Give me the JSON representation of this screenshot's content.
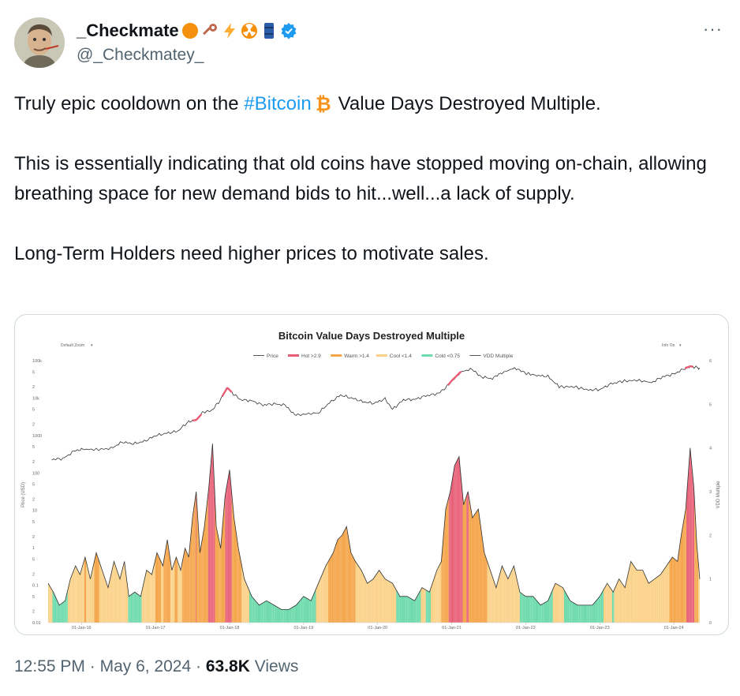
{
  "author": {
    "display_name": "_Checkmate",
    "handle": "@_Checkmatey_",
    "badges": [
      "orange-circle-icon",
      "key-icon",
      "lightning-icon",
      "radioactive-icon",
      "barrel-icon",
      "verified-badge-icon"
    ]
  },
  "more_label": "···",
  "tweet": {
    "line1_before": "Truly epic cooldown on the ",
    "hashtag": "#Bitcoin",
    "line1_after": "Value Days Destroyed Multiple.",
    "para2": "This is essentially indicating that old coins have stopped moving on-chain, allowing breathing space for new demand bids to hit...well...a lack of supply.",
    "para3": "Long-Term Holders need higher prices to motivate sales."
  },
  "chart_data": {
    "type": "line",
    "title": "Bitcoin Value Days Destroyed Multiple",
    "controls": {
      "zoom": "Default Zoom",
      "info": "Info On"
    },
    "legend": [
      {
        "label": "Price",
        "color": "#555555"
      },
      {
        "label": "Hot >2.9",
        "color": "#e85d75"
      },
      {
        "label": "Warm >1.4",
        "color": "#f5a447"
      },
      {
        "label": "Cool <1.4",
        "color": "#fbd28a"
      },
      {
        "label": "Cold <0.75",
        "color": "#6fdbac"
      },
      {
        "label": "VDD Multiple",
        "color": "#555555"
      }
    ],
    "left_axis": {
      "label": "Price (USD)",
      "ticks": [
        "100k",
        "5",
        "2",
        "10k",
        "5",
        "2",
        "1000",
        "5",
        "2",
        "100",
        "5",
        "2",
        "10",
        "5",
        "2",
        "1",
        "5",
        "2",
        "0.1",
        "5",
        "2",
        "0.01"
      ]
    },
    "right_axis": {
      "label": "VDD Multiple",
      "ticks": [
        "6",
        "5",
        "4",
        "3",
        "2",
        "1",
        "0"
      ]
    },
    "x_ticks": [
      "01-Jan-16",
      "01-Jan-17",
      "01-Jan-18",
      "01-Jan-19",
      "01-Jan-20",
      "01-Jan-21",
      "01-Jan-22",
      "01-Jan-23",
      "01-Jan-24"
    ],
    "price_series": [
      [
        2015.6,
        230
      ],
      [
        2015.75,
        240
      ],
      [
        2015.9,
        380
      ],
      [
        2016.0,
        430
      ],
      [
        2016.2,
        420
      ],
      [
        2016.4,
        450
      ],
      [
        2016.55,
        670
      ],
      [
        2016.7,
        600
      ],
      [
        2016.85,
        700
      ],
      [
        2017.0,
        990
      ],
      [
        2017.15,
        1150
      ],
      [
        2017.3,
        1300
      ],
      [
        2017.45,
        2400
      ],
      [
        2017.55,
        2600
      ],
      [
        2017.65,
        4300
      ],
      [
        2017.75,
        4500
      ],
      [
        2017.85,
        7500
      ],
      [
        2017.97,
        19000
      ],
      [
        2018.05,
        13000
      ],
      [
        2018.15,
        9000
      ],
      [
        2018.3,
        8500
      ],
      [
        2018.45,
        6500
      ],
      [
        2018.6,
        7000
      ],
      [
        2018.75,
        6500
      ],
      [
        2018.88,
        3700
      ],
      [
        2019.0,
        3700
      ],
      [
        2019.2,
        4000
      ],
      [
        2019.35,
        7500
      ],
      [
        2019.5,
        12000
      ],
      [
        2019.65,
        10000
      ],
      [
        2019.8,
        8000
      ],
      [
        2019.95,
        7200
      ],
      [
        2020.1,
        9500
      ],
      [
        2020.2,
        5000
      ],
      [
        2020.35,
        9000
      ],
      [
        2020.5,
        9200
      ],
      [
        2020.65,
        11500
      ],
      [
        2020.8,
        13000
      ],
      [
        2020.92,
        19000
      ],
      [
        2021.0,
        29000
      ],
      [
        2021.12,
        50000
      ],
      [
        2021.28,
        60000
      ],
      [
        2021.4,
        37000
      ],
      [
        2021.55,
        33000
      ],
      [
        2021.68,
        47000
      ],
      [
        2021.85,
        64000
      ],
      [
        2021.98,
        47000
      ],
      [
        2022.15,
        40000
      ],
      [
        2022.3,
        38000
      ],
      [
        2022.45,
        20000
      ],
      [
        2022.65,
        20000
      ],
      [
        2022.85,
        16500
      ],
      [
        2023.0,
        16800
      ],
      [
        2023.15,
        24000
      ],
      [
        2023.3,
        28000
      ],
      [
        2023.5,
        30000
      ],
      [
        2023.7,
        26000
      ],
      [
        2023.85,
        37000
      ],
      [
        2024.0,
        44000
      ],
      [
        2024.15,
        62000
      ],
      [
        2024.22,
        71000
      ],
      [
        2024.3,
        66000
      ],
      [
        2024.35,
        63000
      ]
    ],
    "vdd_series": [
      [
        2015.55,
        0.9
      ],
      [
        2015.62,
        0.7
      ],
      [
        2015.7,
        0.4
      ],
      [
        2015.78,
        0.5
      ],
      [
        2015.85,
        1.0
      ],
      [
        2015.92,
        1.3
      ],
      [
        2015.98,
        1.1
      ],
      [
        2016.05,
        1.5
      ],
      [
        2016.12,
        1.0
      ],
      [
        2016.2,
        1.6
      ],
      [
        2016.28,
        1.2
      ],
      [
        2016.36,
        0.8
      ],
      [
        2016.44,
        1.4
      ],
      [
        2016.52,
        1.0
      ],
      [
        2016.58,
        1.4
      ],
      [
        2016.64,
        0.6
      ],
      [
        2016.72,
        0.7
      ],
      [
        2016.8,
        0.6
      ],
      [
        2016.88,
        1.2
      ],
      [
        2016.95,
        1.1
      ],
      [
        2017.02,
        1.6
      ],
      [
        2017.1,
        1.3
      ],
      [
        2017.16,
        1.9
      ],
      [
        2017.22,
        1.2
      ],
      [
        2017.28,
        1.5
      ],
      [
        2017.34,
        1.2
      ],
      [
        2017.4,
        1.7
      ],
      [
        2017.45,
        1.5
      ],
      [
        2017.5,
        2.4
      ],
      [
        2017.55,
        3.0
      ],
      [
        2017.6,
        1.6
      ],
      [
        2017.66,
        2.2
      ],
      [
        2017.72,
        3.1
      ],
      [
        2017.77,
        4.1
      ],
      [
        2017.82,
        2.2
      ],
      [
        2017.88,
        1.7
      ],
      [
        2017.94,
        2.9
      ],
      [
        2018.0,
        3.5
      ],
      [
        2018.06,
        2.4
      ],
      [
        2018.12,
        1.7
      ],
      [
        2018.2,
        1.0
      ],
      [
        2018.3,
        0.6
      ],
      [
        2018.4,
        0.4
      ],
      [
        2018.5,
        0.5
      ],
      [
        2018.6,
        0.4
      ],
      [
        2018.7,
        0.3
      ],
      [
        2018.8,
        0.3
      ],
      [
        2018.9,
        0.4
      ],
      [
        2019.0,
        0.6
      ],
      [
        2019.1,
        0.5
      ],
      [
        2019.2,
        0.9
      ],
      [
        2019.3,
        1.3
      ],
      [
        2019.4,
        1.6
      ],
      [
        2019.46,
        1.9
      ],
      [
        2019.52,
        2.0
      ],
      [
        2019.58,
        2.2
      ],
      [
        2019.64,
        1.6
      ],
      [
        2019.7,
        1.4
      ],
      [
        2019.78,
        1.2
      ],
      [
        2019.86,
        0.9
      ],
      [
        2019.94,
        1.0
      ],
      [
        2020.02,
        1.2
      ],
      [
        2020.1,
        1.0
      ],
      [
        2020.2,
        0.9
      ],
      [
        2020.3,
        0.6
      ],
      [
        2020.4,
        0.6
      ],
      [
        2020.5,
        0.5
      ],
      [
        2020.6,
        0.8
      ],
      [
        2020.7,
        0.7
      ],
      [
        2020.8,
        1.2
      ],
      [
        2020.86,
        1.4
      ],
      [
        2020.92,
        2.6
      ],
      [
        2020.98,
        3.0
      ],
      [
        2021.04,
        3.6
      ],
      [
        2021.1,
        3.8
      ],
      [
        2021.16,
        2.7
      ],
      [
        2021.22,
        3.0
      ],
      [
        2021.28,
        2.4
      ],
      [
        2021.36,
        2.6
      ],
      [
        2021.44,
        1.6
      ],
      [
        2021.52,
        1.2
      ],
      [
        2021.6,
        0.8
      ],
      [
        2021.68,
        1.3
      ],
      [
        2021.76,
        1.0
      ],
      [
        2021.84,
        1.3
      ],
      [
        2021.92,
        0.7
      ],
      [
        2022.0,
        0.6
      ],
      [
        2022.1,
        0.6
      ],
      [
        2022.2,
        0.4
      ],
      [
        2022.3,
        0.5
      ],
      [
        2022.4,
        0.9
      ],
      [
        2022.5,
        0.8
      ],
      [
        2022.6,
        0.5
      ],
      [
        2022.7,
        0.4
      ],
      [
        2022.8,
        0.4
      ],
      [
        2022.9,
        0.4
      ],
      [
        2023.0,
        0.6
      ],
      [
        2023.1,
        0.9
      ],
      [
        2023.18,
        0.7
      ],
      [
        2023.26,
        1.0
      ],
      [
        2023.34,
        0.8
      ],
      [
        2023.42,
        1.4
      ],
      [
        2023.5,
        1.2
      ],
      [
        2023.58,
        1.2
      ],
      [
        2023.66,
        0.9
      ],
      [
        2023.74,
        1.0
      ],
      [
        2023.82,
        1.1
      ],
      [
        2023.9,
        1.3
      ],
      [
        2023.98,
        1.5
      ],
      [
        2024.05,
        1.4
      ],
      [
        2024.1,
        2.0
      ],
      [
        2024.16,
        2.6
      ],
      [
        2024.22,
        4.0
      ],
      [
        2024.27,
        3.1
      ],
      [
        2024.31,
        1.8
      ],
      [
        2024.35,
        1.0
      ]
    ]
  },
  "footer": {
    "time": "12:55 PM",
    "sep1": "·",
    "date": "May 6, 2024",
    "sep2": "·",
    "views_count": "63.8K",
    "views_label": "Views"
  },
  "colors": {
    "text": "#0f1419",
    "muted": "#536471",
    "link": "#1d9bf0",
    "hot": "#e85d75",
    "warm": "#f5a447",
    "cool": "#fbd28a",
    "cold": "#6fdbac"
  }
}
